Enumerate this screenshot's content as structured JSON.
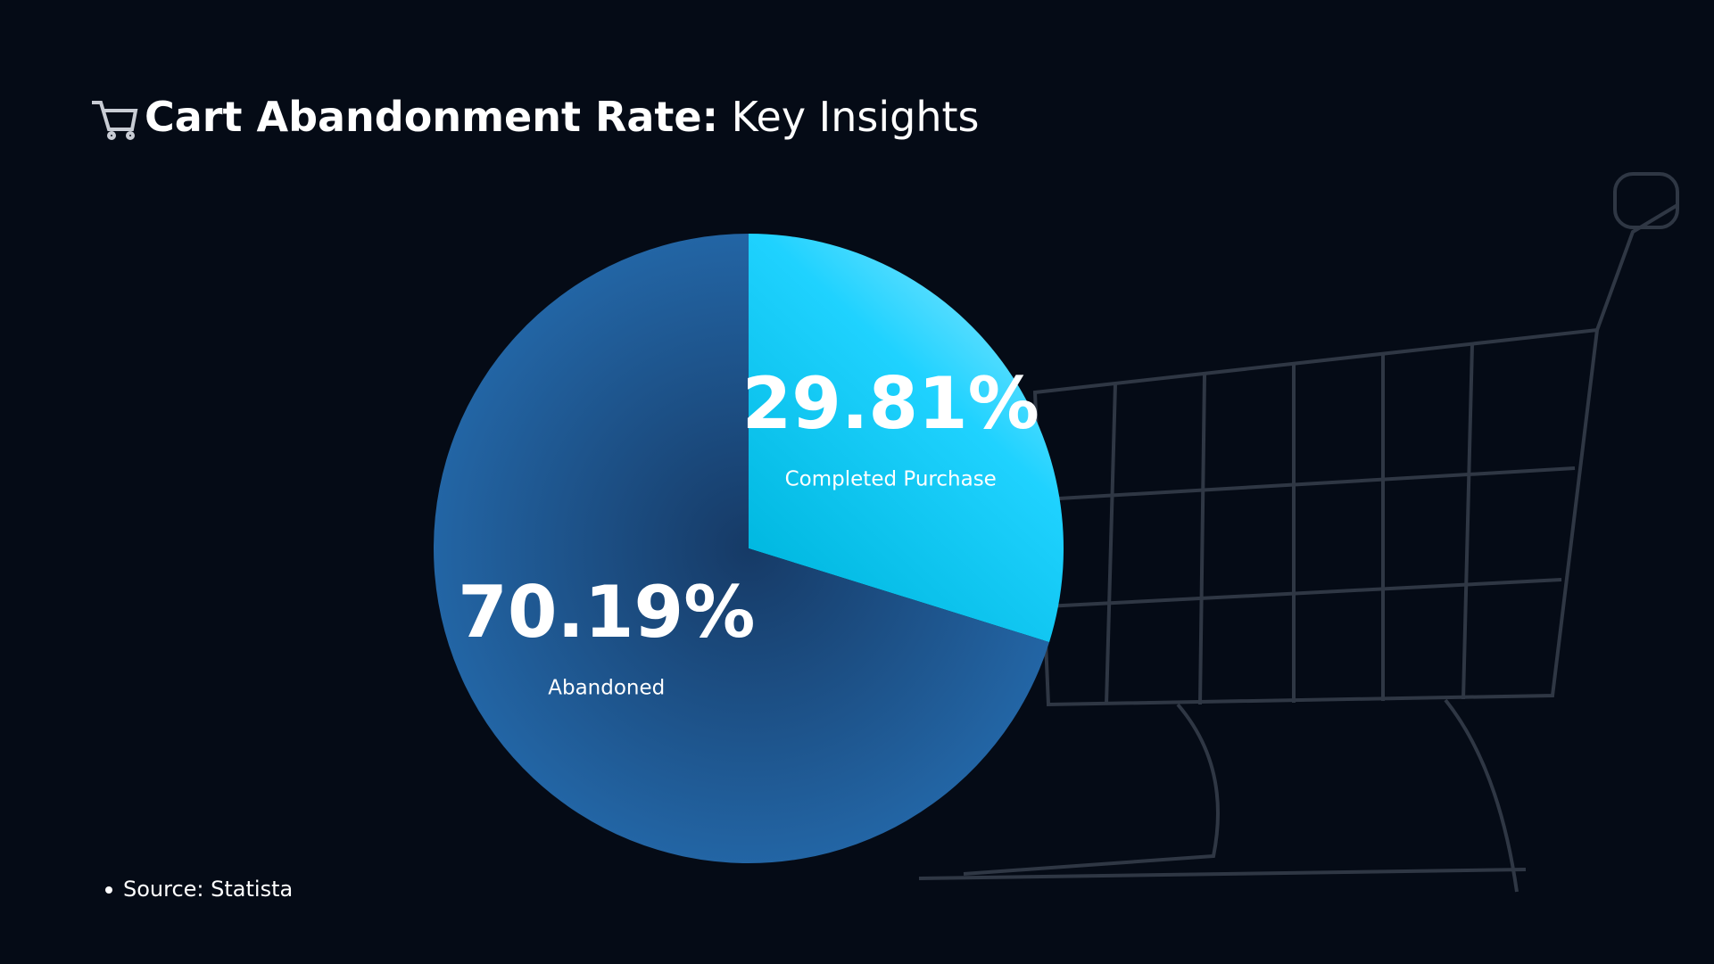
{
  "chart_data": {
    "type": "pie",
    "title": "Cart Abandonment Rate:",
    "subtitle": "Key Insights",
    "categories": [
      "Completed Purchase",
      "Abandoned"
    ],
    "values": [
      29.81,
      70.19
    ],
    "value_labels": [
      "29.81%",
      "70.19%"
    ],
    "colors": [
      "#00c8f0",
      "#1e5d99"
    ],
    "source": "Source:  Statista"
  }
}
